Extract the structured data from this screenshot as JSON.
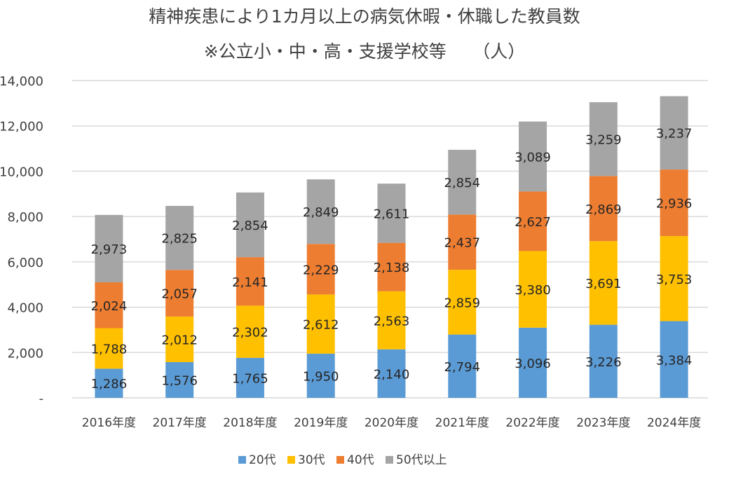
{
  "chart_data": {
    "type": "bar",
    "stacked": true,
    "title": "精神疾患により1カ月以上の病気休暇・休職した教員数",
    "subtitle": "※公立小・中・高・支援学校等　　（人）",
    "xlabel": "",
    "ylabel": "",
    "ylim": [
      0,
      14000
    ],
    "yticks": [
      "-",
      "2,000",
      "4,000",
      "6,000",
      "8,000",
      "10,000",
      "12,000",
      "14,000"
    ],
    "grid": true,
    "legend_position": "bottom",
    "categories": [
      "2016年度",
      "2017年度",
      "2018年度",
      "2019年度",
      "2020年度",
      "2021年度",
      "2022年度",
      "2023年度",
      "2024年度"
    ],
    "series": [
      {
        "name": "20代",
        "color": "#5B9BD5",
        "values": [
          1286,
          1576,
          1765,
          1950,
          2140,
          2794,
          3096,
          3226,
          3384
        ]
      },
      {
        "name": "30代",
        "color": "#FFC000",
        "values": [
          1788,
          2012,
          2302,
          2612,
          2563,
          2859,
          3380,
          3691,
          3753
        ]
      },
      {
        "name": "40代",
        "color": "#ED7D31",
        "values": [
          2024,
          2057,
          2141,
          2229,
          2138,
          2437,
          2627,
          2869,
          2936
        ]
      },
      {
        "name": "50代以上",
        "color": "#A5A5A5",
        "values": [
          2973,
          2825,
          2854,
          2849,
          2611,
          2854,
          3089,
          3259,
          3237
        ]
      }
    ]
  }
}
